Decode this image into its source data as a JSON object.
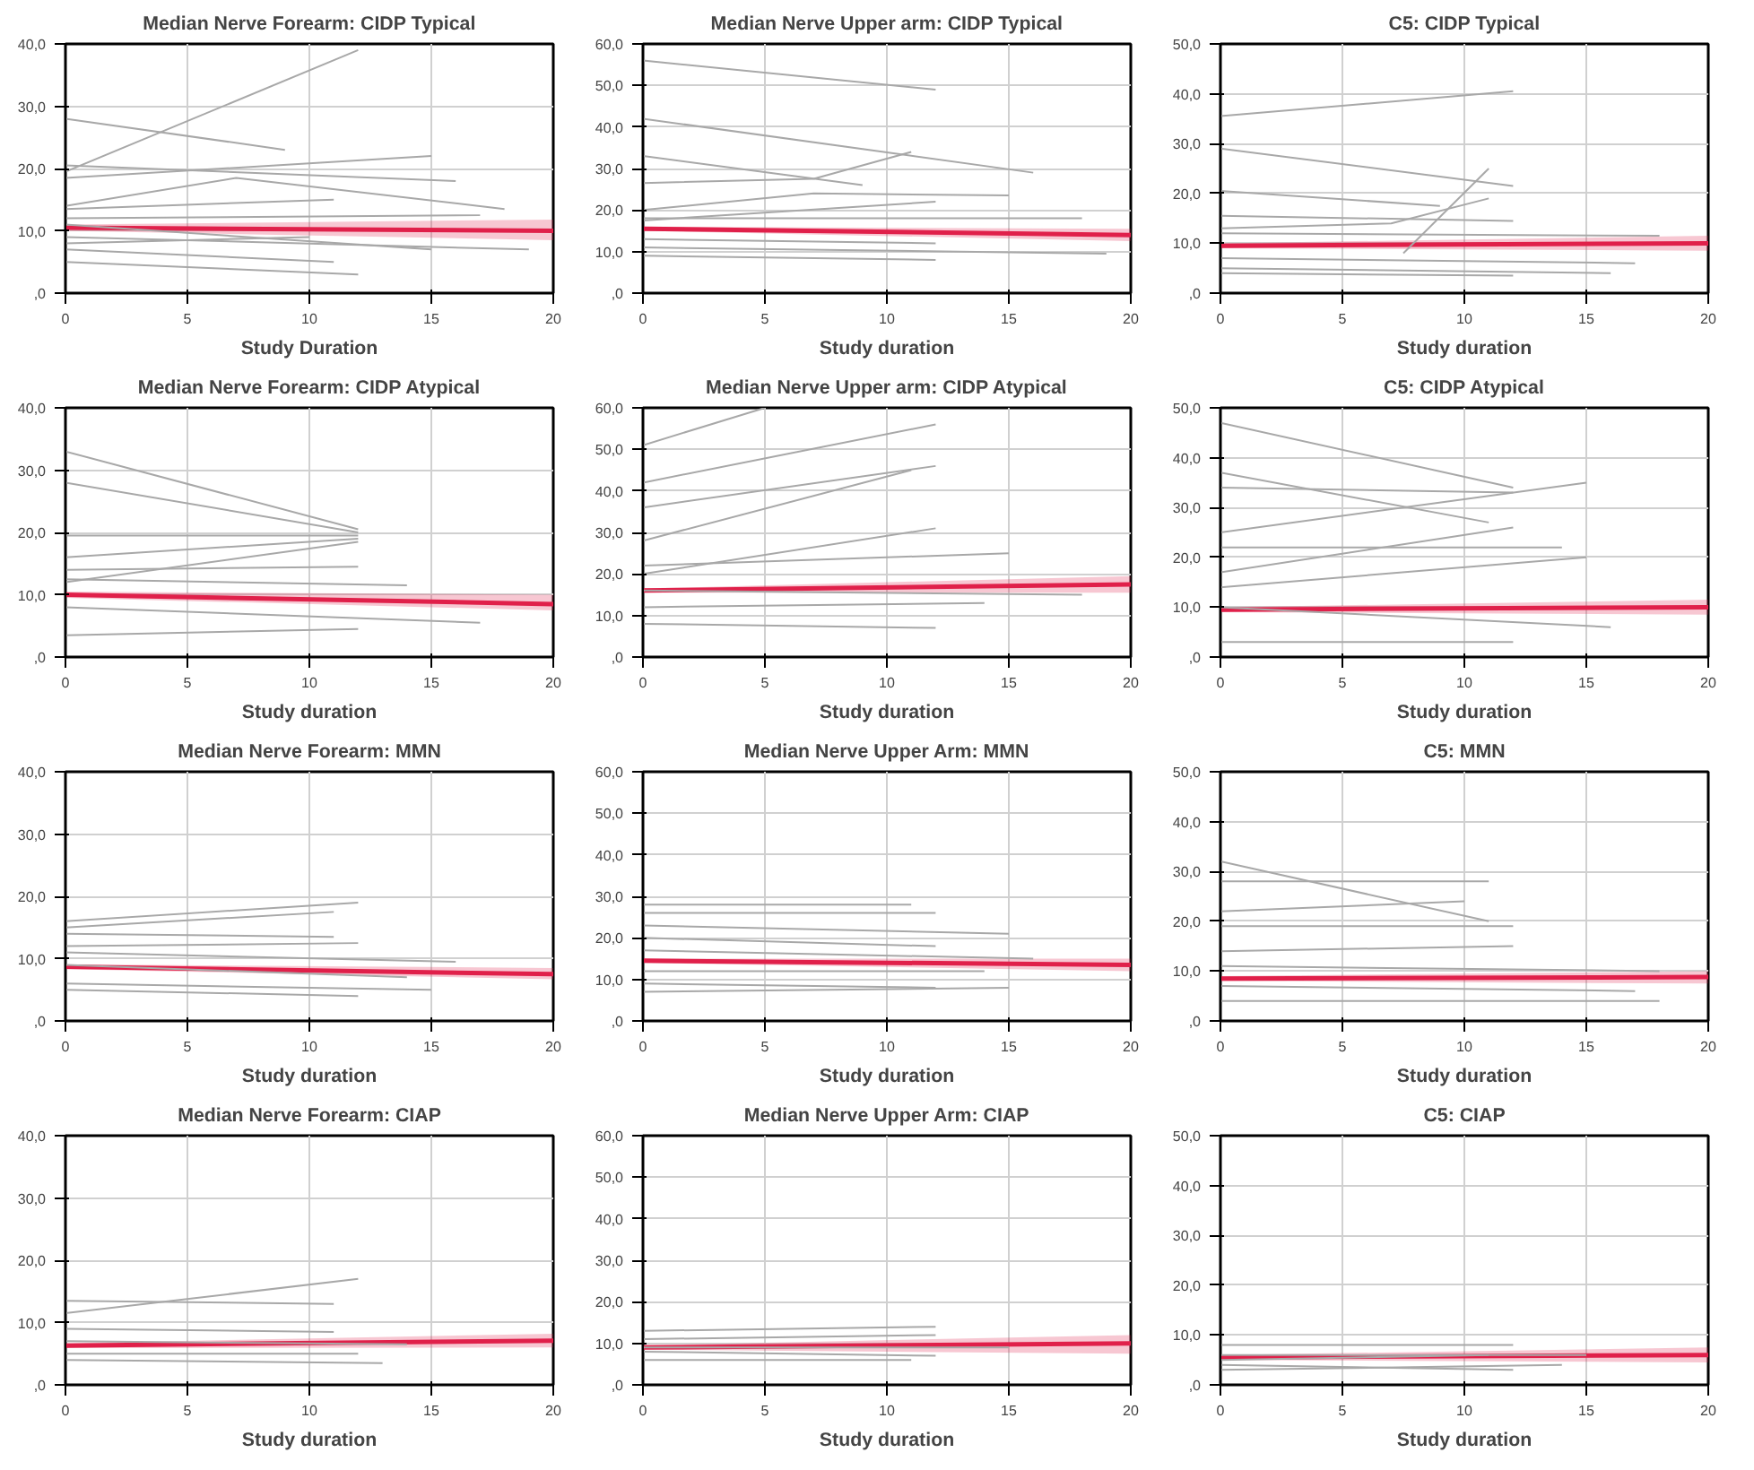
{
  "chart_data": [
    {
      "type": "line",
      "title": "Median Nerve Forearm: CIDP Typical",
      "xlabel": "Study Duration",
      "xlim": [
        0,
        20
      ],
      "ylim": [
        0,
        40
      ],
      "xticks": [
        0,
        5,
        10,
        15,
        20
      ],
      "yticks": [
        {
          "value": 0,
          "label": ",0"
        },
        {
          "value": 10,
          "label": "10,0"
        },
        {
          "value": 20,
          "label": "20,0"
        },
        {
          "value": 30,
          "label": "30,0"
        },
        {
          "value": 40,
          "label": "40,0"
        }
      ],
      "grid": true,
      "series": [
        {
          "color": "#a8a8a8",
          "x": [
            0,
            12
          ],
          "values": [
            19.5,
            39
          ]
        },
        {
          "color": "#a8a8a8",
          "x": [
            0,
            9
          ],
          "values": [
            28,
            23
          ]
        },
        {
          "color": "#a8a8a8",
          "x": [
            0,
            16
          ],
          "values": [
            20.5,
            18
          ]
        },
        {
          "color": "#a8a8a8",
          "x": [
            0,
            15
          ],
          "values": [
            18.5,
            22
          ]
        },
        {
          "color": "#a8a8a8",
          "x": [
            0,
            7,
            18
          ],
          "values": [
            14,
            18.5,
            13.5
          ]
        },
        {
          "color": "#a8a8a8",
          "x": [
            0,
            11
          ],
          "values": [
            13.5,
            15
          ]
        },
        {
          "color": "#a8a8a8",
          "x": [
            0,
            17
          ],
          "values": [
            12,
            12.5
          ]
        },
        {
          "color": "#a8a8a8",
          "x": [
            0,
            15
          ],
          "values": [
            11,
            7
          ]
        },
        {
          "color": "#a8a8a8",
          "x": [
            0,
            19
          ],
          "values": [
            9,
            7
          ]
        },
        {
          "color": "#a8a8a8",
          "x": [
            0,
            10
          ],
          "values": [
            8,
            9
          ]
        },
        {
          "color": "#a8a8a8",
          "x": [
            0,
            11
          ],
          "values": [
            7,
            5
          ]
        },
        {
          "color": "#a8a8a8",
          "x": [
            0,
            12
          ],
          "values": [
            5,
            3
          ]
        },
        {
          "color": "#e0204a",
          "x": [
            0,
            20
          ],
          "values": [
            10.5,
            10
          ],
          "lower": [
            10,
            8.5
          ],
          "upper": [
            11,
            11.8
          ]
        }
      ]
    },
    {
      "type": "line",
      "title": "Median Nerve Upper arm: CIDP Typical",
      "xlabel": "Study duration",
      "xlim": [
        0,
        20
      ],
      "ylim": [
        0,
        60
      ],
      "xticks": [
        0,
        5,
        10,
        15,
        20
      ],
      "yticks": [
        {
          "value": 0,
          "label": ",0"
        },
        {
          "value": 10,
          "label": "10,0"
        },
        {
          "value": 20,
          "label": "20,0"
        },
        {
          "value": 30,
          "label": "30,0"
        },
        {
          "value": 40,
          "label": "40,0"
        },
        {
          "value": 50,
          "label": "50,0"
        },
        {
          "value": 60,
          "label": "60,0"
        }
      ],
      "grid": true,
      "series": [
        {
          "color": "#a8a8a8",
          "x": [
            0,
            12
          ],
          "values": [
            56,
            49
          ]
        },
        {
          "color": "#a8a8a8",
          "x": [
            0,
            16
          ],
          "values": [
            42,
            29
          ]
        },
        {
          "color": "#a8a8a8",
          "x": [
            0,
            9
          ],
          "values": [
            33,
            26
          ]
        },
        {
          "color": "#a8a8a8",
          "x": [
            0,
            7,
            11
          ],
          "values": [
            26.5,
            27.5,
            34
          ]
        },
        {
          "color": "#a8a8a8",
          "x": [
            0,
            7,
            15
          ],
          "values": [
            20,
            24,
            23.5
          ]
        },
        {
          "color": "#a8a8a8",
          "x": [
            0,
            12
          ],
          "values": [
            17.5,
            22
          ]
        },
        {
          "color": "#a8a8a8",
          "x": [
            0,
            18
          ],
          "values": [
            18,
            18
          ]
        },
        {
          "color": "#a8a8a8",
          "x": [
            0,
            12
          ],
          "values": [
            13,
            12
          ]
        },
        {
          "color": "#a8a8a8",
          "x": [
            0,
            19
          ],
          "values": [
            11,
            9.5
          ]
        },
        {
          "color": "#a8a8a8",
          "x": [
            0,
            12
          ],
          "values": [
            9,
            8
          ]
        },
        {
          "color": "#e0204a",
          "x": [
            0,
            20
          ],
          "values": [
            15.5,
            14
          ],
          "lower": [
            15,
            12.5
          ],
          "upper": [
            16,
            15.5
          ]
        }
      ]
    },
    {
      "type": "line",
      "title": "C5: CIDP Typical",
      "xlabel": "Study duration",
      "xlim": [
        0,
        20
      ],
      "ylim": [
        0,
        50
      ],
      "xticks": [
        0,
        5,
        10,
        15,
        20
      ],
      "yticks": [
        {
          "value": 0,
          "label": ",0"
        },
        {
          "value": 10,
          "label": "10,0"
        },
        {
          "value": 20,
          "label": "20,0"
        },
        {
          "value": 30,
          "label": "30,0"
        },
        {
          "value": 40,
          "label": "40,0"
        },
        {
          "value": 50,
          "label": "50,0"
        }
      ],
      "grid": true,
      "series": [
        {
          "color": "#a8a8a8",
          "x": [
            0,
            12
          ],
          "values": [
            35.5,
            40.5
          ]
        },
        {
          "color": "#a8a8a8",
          "x": [
            0,
            12
          ],
          "values": [
            29,
            21.5
          ]
        },
        {
          "color": "#a8a8a8",
          "x": [
            0,
            9
          ],
          "values": [
            20.5,
            17.5
          ]
        },
        {
          "color": "#a8a8a8",
          "x": [
            0,
            12
          ],
          "values": [
            15.5,
            14.5
          ]
        },
        {
          "color": "#a8a8a8",
          "x": [
            0,
            7,
            11
          ],
          "values": [
            13,
            14,
            19
          ]
        },
        {
          "color": "#a8a8a8",
          "x": [
            7.5,
            11
          ],
          "values": [
            8,
            25
          ]
        },
        {
          "color": "#a8a8a8",
          "x": [
            0,
            18
          ],
          "values": [
            12,
            11.5
          ]
        },
        {
          "color": "#a8a8a8",
          "x": [
            0,
            17
          ],
          "values": [
            7,
            6
          ]
        },
        {
          "color": "#a8a8a8",
          "x": [
            0,
            16
          ],
          "values": [
            5,
            4
          ]
        },
        {
          "color": "#a8a8a8",
          "x": [
            0,
            12
          ],
          "values": [
            4,
            3.5
          ]
        },
        {
          "color": "#e0204a",
          "x": [
            0,
            20
          ],
          "values": [
            9.5,
            10
          ],
          "lower": [
            9,
            8.5
          ],
          "upper": [
            10,
            11.5
          ]
        }
      ]
    },
    {
      "type": "line",
      "title": "Median Nerve Forearm: CIDP Atypical",
      "xlabel": "Study duration",
      "xlim": [
        0,
        20
      ],
      "ylim": [
        0,
        40
      ],
      "xticks": [
        0,
        5,
        10,
        15,
        20
      ],
      "yticks": [
        {
          "value": 0,
          "label": ",0"
        },
        {
          "value": 10,
          "label": "10,0"
        },
        {
          "value": 20,
          "label": "20,0"
        },
        {
          "value": 30,
          "label": "30,0"
        },
        {
          "value": 40,
          "label": "40,0"
        }
      ],
      "grid": true,
      "series": [
        {
          "color": "#a8a8a8",
          "x": [
            0,
            12
          ],
          "values": [
            33,
            20.5
          ]
        },
        {
          "color": "#a8a8a8",
          "x": [
            0,
            12
          ],
          "values": [
            28,
            20
          ]
        },
        {
          "color": "#a8a8a8",
          "x": [
            0,
            12
          ],
          "values": [
            19.5,
            19.5
          ]
        },
        {
          "color": "#a8a8a8",
          "x": [
            0,
            12
          ],
          "values": [
            16,
            19
          ]
        },
        {
          "color": "#a8a8a8",
          "x": [
            0,
            12
          ],
          "values": [
            12,
            18.5
          ]
        },
        {
          "color": "#a8a8a8",
          "x": [
            0,
            12
          ],
          "values": [
            14,
            14.5
          ]
        },
        {
          "color": "#a8a8a8",
          "x": [
            0,
            14
          ],
          "values": [
            12.5,
            11.5
          ]
        },
        {
          "color": "#a8a8a8",
          "x": [
            0,
            17
          ],
          "values": [
            8,
            5.5
          ]
        },
        {
          "color": "#a8a8a8",
          "x": [
            0,
            12
          ],
          "values": [
            3.5,
            4.5
          ]
        },
        {
          "color": "#e0204a",
          "x": [
            0,
            20
          ],
          "values": [
            10,
            8.5
          ],
          "lower": [
            9.5,
            7.5
          ],
          "upper": [
            10.5,
            10
          ]
        }
      ]
    },
    {
      "type": "line",
      "title": "Median Nerve Upper arm: CIDP Atypical",
      "xlabel": "Study duration",
      "xlim": [
        0,
        20
      ],
      "ylim": [
        0,
        60
      ],
      "xticks": [
        0,
        5,
        10,
        15,
        20
      ],
      "yticks": [
        {
          "value": 0,
          "label": ",0"
        },
        {
          "value": 10,
          "label": "10,0"
        },
        {
          "value": 20,
          "label": "20,0"
        },
        {
          "value": 30,
          "label": "30,0"
        },
        {
          "value": 40,
          "label": "40,0"
        },
        {
          "value": 50,
          "label": "50,0"
        },
        {
          "value": 60,
          "label": "60,0"
        }
      ],
      "grid": true,
      "series": [
        {
          "color": "#a8a8a8",
          "x": [
            0,
            5
          ],
          "values": [
            51,
            60
          ]
        },
        {
          "color": "#a8a8a8",
          "x": [
            0,
            12
          ],
          "values": [
            42,
            56
          ]
        },
        {
          "color": "#a8a8a8",
          "x": [
            0,
            12
          ],
          "values": [
            36,
            46
          ]
        },
        {
          "color": "#a8a8a8",
          "x": [
            0,
            11
          ],
          "values": [
            28,
            45
          ]
        },
        {
          "color": "#a8a8a8",
          "x": [
            0,
            12
          ],
          "values": [
            20,
            31
          ]
        },
        {
          "color": "#a8a8a8",
          "x": [
            0,
            15
          ],
          "values": [
            22,
            25
          ]
        },
        {
          "color": "#a8a8a8",
          "x": [
            0,
            18
          ],
          "values": [
            16,
            15
          ]
        },
        {
          "color": "#a8a8a8",
          "x": [
            0,
            14
          ],
          "values": [
            12,
            13
          ]
        },
        {
          "color": "#a8a8a8",
          "x": [
            0,
            12
          ],
          "values": [
            8,
            7
          ]
        },
        {
          "color": "#e0204a",
          "x": [
            0,
            20
          ],
          "values": [
            16,
            17.5
          ],
          "lower": [
            15.5,
            15.5
          ],
          "upper": [
            16.5,
            19.5
          ]
        }
      ]
    },
    {
      "type": "line",
      "title": "C5: CIDP Atypical",
      "xlabel": "Study duration",
      "xlim": [
        0,
        20
      ],
      "ylim": [
        0,
        50
      ],
      "xticks": [
        0,
        5,
        10,
        15,
        20
      ],
      "yticks": [
        {
          "value": 0,
          "label": ",0"
        },
        {
          "value": 10,
          "label": "10,0"
        },
        {
          "value": 20,
          "label": "20,0"
        },
        {
          "value": 30,
          "label": "30,0"
        },
        {
          "value": 40,
          "label": "40,0"
        },
        {
          "value": 50,
          "label": "50,0"
        }
      ],
      "grid": true,
      "series": [
        {
          "color": "#a8a8a8",
          "x": [
            0,
            12
          ],
          "values": [
            47,
            34
          ]
        },
        {
          "color": "#a8a8a8",
          "x": [
            0,
            11
          ],
          "values": [
            37,
            27
          ]
        },
        {
          "color": "#a8a8a8",
          "x": [
            0,
            12
          ],
          "values": [
            34,
            33
          ]
        },
        {
          "color": "#a8a8a8",
          "x": [
            0,
            15
          ],
          "values": [
            25,
            35
          ]
        },
        {
          "color": "#a8a8a8",
          "x": [
            0,
            14
          ],
          "values": [
            22,
            22
          ]
        },
        {
          "color": "#a8a8a8",
          "x": [
            0,
            12
          ],
          "values": [
            17,
            26
          ]
        },
        {
          "color": "#a8a8a8",
          "x": [
            0,
            15
          ],
          "values": [
            14,
            20
          ]
        },
        {
          "color": "#a8a8a8",
          "x": [
            0,
            16
          ],
          "values": [
            10,
            6
          ]
        },
        {
          "color": "#a8a8a8",
          "x": [
            0,
            12
          ],
          "values": [
            3,
            3
          ]
        },
        {
          "color": "#e0204a",
          "x": [
            0,
            20
          ],
          "values": [
            9.5,
            10
          ],
          "lower": [
            9,
            8.5
          ],
          "upper": [
            10,
            11.5
          ]
        }
      ]
    },
    {
      "type": "line",
      "title": "Median Nerve Forearm: MMN",
      "xlabel": "Study duration",
      "xlim": [
        0,
        20
      ],
      "ylim": [
        0,
        40
      ],
      "xticks": [
        0,
        5,
        10,
        15,
        20
      ],
      "yticks": [
        {
          "value": 0,
          "label": ",0"
        },
        {
          "value": 10,
          "label": "10,0"
        },
        {
          "value": 20,
          "label": "20,0"
        },
        {
          "value": 30,
          "label": "30,0"
        },
        {
          "value": 40,
          "label": "40,0"
        }
      ],
      "grid": true,
      "series": [
        {
          "color": "#a8a8a8",
          "x": [
            0,
            12
          ],
          "values": [
            16,
            19
          ]
        },
        {
          "color": "#a8a8a8",
          "x": [
            0,
            11
          ],
          "values": [
            15,
            17.5
          ]
        },
        {
          "color": "#a8a8a8",
          "x": [
            0,
            11
          ],
          "values": [
            14,
            13.5
          ]
        },
        {
          "color": "#a8a8a8",
          "x": [
            0,
            12
          ],
          "values": [
            12,
            12.5
          ]
        },
        {
          "color": "#a8a8a8",
          "x": [
            0,
            16
          ],
          "values": [
            11,
            9.5
          ]
        },
        {
          "color": "#a8a8a8",
          "x": [
            0,
            14
          ],
          "values": [
            9,
            7
          ]
        },
        {
          "color": "#a8a8a8",
          "x": [
            0,
            15
          ],
          "values": [
            6,
            5
          ]
        },
        {
          "color": "#a8a8a8",
          "x": [
            0,
            12
          ],
          "values": [
            5,
            4
          ]
        },
        {
          "color": "#e0204a",
          "x": [
            0,
            20
          ],
          "values": [
            8.7,
            7.5
          ],
          "lower": [
            8.3,
            6.7
          ],
          "upper": [
            9.1,
            8.5
          ]
        }
      ]
    },
    {
      "type": "line",
      "title": "Median Nerve Upper Arm: MMN",
      "xlabel": "Study duration",
      "xlim": [
        0,
        20
      ],
      "ylim": [
        0,
        60
      ],
      "xticks": [
        0,
        5,
        10,
        15,
        20
      ],
      "yticks": [
        {
          "value": 0,
          "label": ",0"
        },
        {
          "value": 10,
          "label": "10,0"
        },
        {
          "value": 20,
          "label": "20,0"
        },
        {
          "value": 30,
          "label": "30,0"
        },
        {
          "value": 40,
          "label": "40,0"
        },
        {
          "value": 50,
          "label": "50,0"
        },
        {
          "value": 60,
          "label": "60,0"
        }
      ],
      "grid": true,
      "series": [
        {
          "color": "#a8a8a8",
          "x": [
            0,
            11
          ],
          "values": [
            28,
            28
          ]
        },
        {
          "color": "#a8a8a8",
          "x": [
            0,
            12
          ],
          "values": [
            26,
            26
          ]
        },
        {
          "color": "#a8a8a8",
          "x": [
            0,
            15
          ],
          "values": [
            23,
            21
          ]
        },
        {
          "color": "#a8a8a8",
          "x": [
            0,
            12
          ],
          "values": [
            20,
            18
          ]
        },
        {
          "color": "#a8a8a8",
          "x": [
            0,
            16
          ],
          "values": [
            17,
            15
          ]
        },
        {
          "color": "#a8a8a8",
          "x": [
            0,
            14
          ],
          "values": [
            12,
            12
          ]
        },
        {
          "color": "#a8a8a8",
          "x": [
            0,
            12
          ],
          "values": [
            9,
            8
          ]
        },
        {
          "color": "#a8a8a8",
          "x": [
            0,
            15
          ],
          "values": [
            7,
            8
          ]
        },
        {
          "color": "#e0204a",
          "x": [
            0,
            20
          ],
          "values": [
            14.5,
            13.5
          ],
          "lower": [
            14,
            12
          ],
          "upper": [
            15,
            15
          ]
        }
      ]
    },
    {
      "type": "line",
      "title": "C5: MMN",
      "xlabel": "Study duration",
      "xlim": [
        0,
        20
      ],
      "ylim": [
        0,
        50
      ],
      "xticks": [
        0,
        5,
        10,
        15,
        20
      ],
      "yticks": [
        {
          "value": 0,
          "label": ",0"
        },
        {
          "value": 10,
          "label": "10,0"
        },
        {
          "value": 20,
          "label": "20,0"
        },
        {
          "value": 30,
          "label": "30,0"
        },
        {
          "value": 40,
          "label": "40,0"
        },
        {
          "value": 50,
          "label": "50,0"
        }
      ],
      "grid": true,
      "series": [
        {
          "color": "#a8a8a8",
          "x": [
            0,
            11
          ],
          "values": [
            32,
            20
          ]
        },
        {
          "color": "#a8a8a8",
          "x": [
            0,
            11
          ],
          "values": [
            28,
            28
          ]
        },
        {
          "color": "#a8a8a8",
          "x": [
            0,
            10
          ],
          "values": [
            22,
            24
          ]
        },
        {
          "color": "#a8a8a8",
          "x": [
            0,
            12
          ],
          "values": [
            19,
            19
          ]
        },
        {
          "color": "#a8a8a8",
          "x": [
            0,
            12
          ],
          "values": [
            14,
            15
          ]
        },
        {
          "color": "#a8a8a8",
          "x": [
            0,
            18
          ],
          "values": [
            11,
            10
          ]
        },
        {
          "color": "#a8a8a8",
          "x": [
            0,
            17
          ],
          "values": [
            7,
            6
          ]
        },
        {
          "color": "#a8a8a8",
          "x": [
            0,
            18
          ],
          "values": [
            4,
            4
          ]
        },
        {
          "color": "#e0204a",
          "x": [
            0,
            20
          ],
          "values": [
            8.5,
            8.8
          ],
          "lower": [
            8,
            7.5
          ],
          "upper": [
            9,
            10
          ]
        }
      ]
    },
    {
      "type": "line",
      "title": "Median Nerve Forearm: CIAP",
      "xlabel": "Study duration",
      "xlim": [
        0,
        20
      ],
      "ylim": [
        0,
        40
      ],
      "xticks": [
        0,
        5,
        10,
        15,
        20
      ],
      "yticks": [
        {
          "value": 0,
          "label": ",0"
        },
        {
          "value": 10,
          "label": "10,0"
        },
        {
          "value": 20,
          "label": "20,0"
        },
        {
          "value": 30,
          "label": "30,0"
        },
        {
          "value": 40,
          "label": "40,0"
        }
      ],
      "grid": true,
      "series": [
        {
          "color": "#a8a8a8",
          "x": [
            0,
            12
          ],
          "values": [
            11.5,
            17
          ]
        },
        {
          "color": "#a8a8a8",
          "x": [
            0,
            11
          ],
          "values": [
            13.5,
            13
          ]
        },
        {
          "color": "#a8a8a8",
          "x": [
            0,
            11
          ],
          "values": [
            9,
            8.5
          ]
        },
        {
          "color": "#a8a8a8",
          "x": [
            0,
            14
          ],
          "values": [
            7,
            6.5
          ]
        },
        {
          "color": "#a8a8a8",
          "x": [
            0,
            12
          ],
          "values": [
            5,
            5
          ]
        },
        {
          "color": "#a8a8a8",
          "x": [
            0,
            13
          ],
          "values": [
            4,
            3.5
          ]
        },
        {
          "color": "#e0204a",
          "x": [
            0,
            20
          ],
          "values": [
            6.3,
            7.1
          ],
          "lower": [
            5.9,
            6
          ],
          "upper": [
            6.7,
            8.2
          ]
        }
      ]
    },
    {
      "type": "line",
      "title": "Median Nerve Upper Arm: CIAP",
      "xlabel": "Study duration",
      "xlim": [
        0,
        20
      ],
      "ylim": [
        0,
        60
      ],
      "xticks": [
        0,
        5,
        10,
        15,
        20
      ],
      "yticks": [
        {
          "value": 0,
          "label": ",0"
        },
        {
          "value": 10,
          "label": "10,0"
        },
        {
          "value": 20,
          "label": "20,0"
        },
        {
          "value": 30,
          "label": "30,0"
        },
        {
          "value": 40,
          "label": "40,0"
        },
        {
          "value": 50,
          "label": "50,0"
        },
        {
          "value": 60,
          "label": "60,0"
        }
      ],
      "grid": true,
      "series": [
        {
          "color": "#a8a8a8",
          "x": [
            0,
            12
          ],
          "values": [
            13,
            14
          ]
        },
        {
          "color": "#a8a8a8",
          "x": [
            0,
            12
          ],
          "values": [
            11,
            12
          ]
        },
        {
          "color": "#a8a8a8",
          "x": [
            0,
            15
          ],
          "values": [
            9,
            9
          ]
        },
        {
          "color": "#a8a8a8",
          "x": [
            0,
            12
          ],
          "values": [
            8,
            7
          ]
        },
        {
          "color": "#a8a8a8",
          "x": [
            0,
            11
          ],
          "values": [
            6,
            6
          ]
        },
        {
          "color": "#e0204a",
          "x": [
            0,
            20
          ],
          "values": [
            9,
            10
          ],
          "lower": [
            8.5,
            7.5
          ],
          "upper": [
            9.5,
            12
          ]
        }
      ]
    },
    {
      "type": "line",
      "title": "C5: CIAP",
      "xlabel": "Study duration",
      "xlim": [
        0,
        20
      ],
      "ylim": [
        0,
        50
      ],
      "xticks": [
        0,
        5,
        10,
        15,
        20
      ],
      "yticks": [
        {
          "value": 0,
          "label": ",0"
        },
        {
          "value": 10,
          "label": "10,0"
        },
        {
          "value": 20,
          "label": "20,0"
        },
        {
          "value": 30,
          "label": "30,0"
        },
        {
          "value": 40,
          "label": "40,0"
        },
        {
          "value": 50,
          "label": "50,0"
        }
      ],
      "grid": true,
      "series": [
        {
          "color": "#a8a8a8",
          "x": [
            0,
            12
          ],
          "values": [
            8,
            8
          ]
        },
        {
          "color": "#a8a8a8",
          "x": [
            0,
            15
          ],
          "values": [
            6,
            6
          ]
        },
        {
          "color": "#a8a8a8",
          "x": [
            0,
            11
          ],
          "values": [
            5,
            6
          ]
        },
        {
          "color": "#a8a8a8",
          "x": [
            0,
            12
          ],
          "values": [
            4,
            3
          ]
        },
        {
          "color": "#a8a8a8",
          "x": [
            0,
            14
          ],
          "values": [
            3,
            4
          ]
        },
        {
          "color": "#e0204a",
          "x": [
            0,
            20
          ],
          "values": [
            5.5,
            6
          ],
          "lower": [
            5,
            4.5
          ],
          "upper": [
            6,
            7.5
          ]
        }
      ]
    }
  ]
}
